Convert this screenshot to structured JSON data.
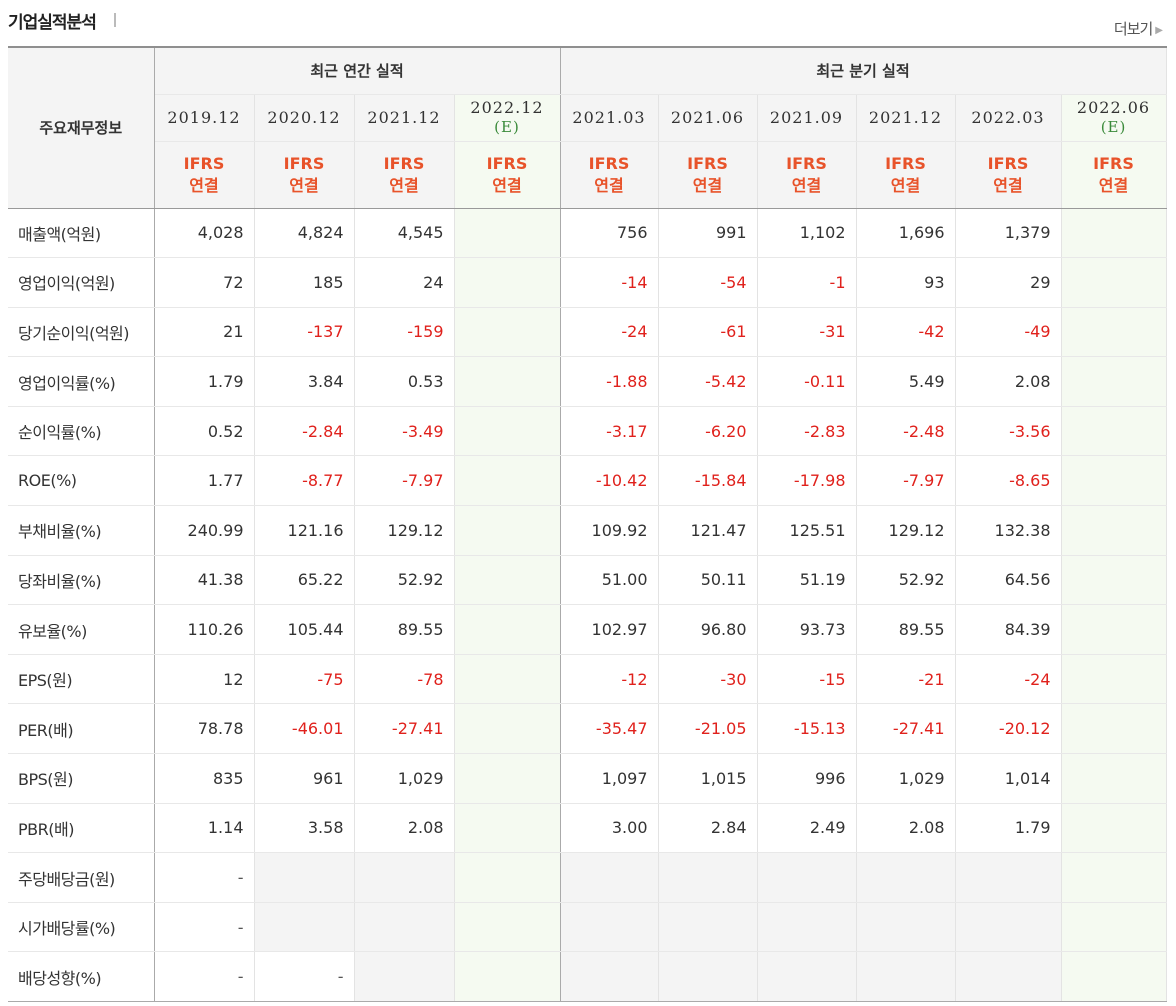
{
  "header": {
    "title": "기업실적분석",
    "more_label": "더보기"
  },
  "table": {
    "corner_label": "주요재무정보",
    "group_annual": "최근 연간 실적",
    "group_quarter": "최근 분기 실적",
    "periods": [
      "2019.12",
      "2020.12",
      "2021.12",
      "2022.12",
      "2021.03",
      "2021.06",
      "2021.09",
      "2021.12",
      "2022.03",
      "2022.06"
    ],
    "estimate_marks": [
      "",
      "",
      "",
      "(E)",
      "",
      "",
      "",
      "",
      "",
      "(E)"
    ],
    "basis_line1": "IFRS",
    "basis_line2": "연결",
    "rows": [
      {
        "label": "매출액(억원)",
        "values": [
          "4,028",
          "4,824",
          "4,545",
          "",
          "756",
          "991",
          "1,102",
          "1,696",
          "1,379",
          ""
        ],
        "group": false
      },
      {
        "label": "영업이익(억원)",
        "values": [
          "72",
          "185",
          "24",
          "",
          "-14",
          "-54",
          "-1",
          "93",
          "29",
          ""
        ],
        "group": false
      },
      {
        "label": "당기순이익(억원)",
        "values": [
          "21",
          "-137",
          "-159",
          "",
          "-24",
          "-61",
          "-31",
          "-42",
          "-49",
          ""
        ],
        "group": false
      },
      {
        "label": "영업이익률(%)",
        "values": [
          "1.79",
          "3.84",
          "0.53",
          "",
          "-1.88",
          "-5.42",
          "-0.11",
          "5.49",
          "2.08",
          ""
        ],
        "group": true
      },
      {
        "label": "순이익률(%)",
        "values": [
          "0.52",
          "-2.84",
          "-3.49",
          "",
          "-3.17",
          "-6.20",
          "-2.83",
          "-2.48",
          "-3.56",
          ""
        ],
        "group": false
      },
      {
        "label": "ROE(%)",
        "values": [
          "1.77",
          "-8.77",
          "-7.97",
          "",
          "-10.42",
          "-15.84",
          "-17.98",
          "-7.97",
          "-8.65",
          ""
        ],
        "group": false
      },
      {
        "label": "부채비율(%)",
        "values": [
          "240.99",
          "121.16",
          "129.12",
          "",
          "109.92",
          "121.47",
          "125.51",
          "129.12",
          "132.38",
          ""
        ],
        "group": true
      },
      {
        "label": "당좌비율(%)",
        "values": [
          "41.38",
          "65.22",
          "52.92",
          "",
          "51.00",
          "50.11",
          "51.19",
          "52.92",
          "64.56",
          ""
        ],
        "group": false
      },
      {
        "label": "유보율(%)",
        "values": [
          "110.26",
          "105.44",
          "89.55",
          "",
          "102.97",
          "96.80",
          "93.73",
          "89.55",
          "84.39",
          ""
        ],
        "group": false
      },
      {
        "label": "EPS(원)",
        "values": [
          "12",
          "-75",
          "-78",
          "",
          "-12",
          "-30",
          "-15",
          "-21",
          "-24",
          ""
        ],
        "group": true
      },
      {
        "label": "PER(배)",
        "values": [
          "78.78",
          "-46.01",
          "-27.41",
          "",
          "-35.47",
          "-21.05",
          "-15.13",
          "-27.41",
          "-20.12",
          ""
        ],
        "group": false
      },
      {
        "label": "BPS(원)",
        "values": [
          "835",
          "961",
          "1,029",
          "",
          "1,097",
          "1,015",
          "996",
          "1,029",
          "1,014",
          ""
        ],
        "group": false
      },
      {
        "label": "PBR(배)",
        "values": [
          "1.14",
          "3.58",
          "2.08",
          "",
          "3.00",
          "2.84",
          "2.49",
          "2.08",
          "1.79",
          ""
        ],
        "group": false
      },
      {
        "label": "주당배당금(원)",
        "values": [
          "-",
          null,
          null,
          "",
          null,
          null,
          null,
          null,
          null,
          ""
        ],
        "group": true
      },
      {
        "label": "시가배당률(%)",
        "values": [
          "-",
          null,
          null,
          "",
          null,
          null,
          null,
          null,
          null,
          ""
        ],
        "group": false
      },
      {
        "label": "배당성향(%)",
        "values": [
          "-",
          "-",
          null,
          "",
          null,
          null,
          null,
          null,
          null,
          ""
        ],
        "group": false
      }
    ]
  },
  "colors": {
    "negative": "#e0211c",
    "basis": "#e8532a",
    "estimate": "#3a8a3a"
  }
}
